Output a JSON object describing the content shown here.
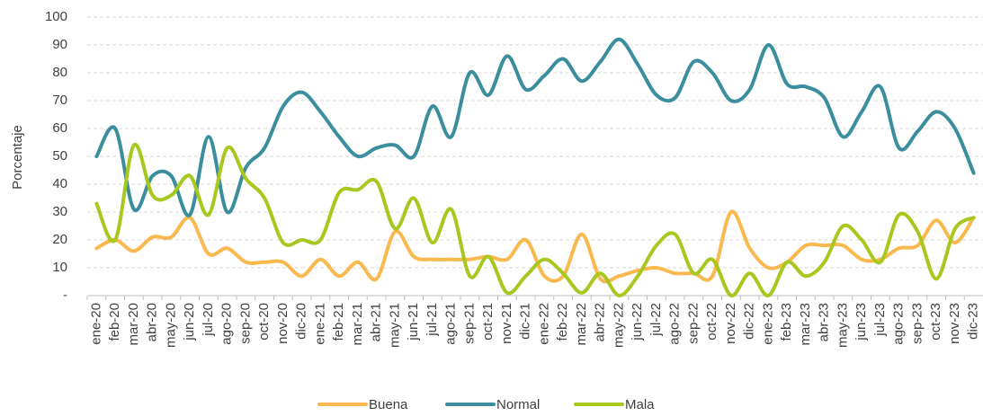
{
  "chart_data": {
    "type": "line",
    "y_label": "Porcentaje",
    "categories": [
      "ene-20",
      "feb-20",
      "mar-20",
      "abr-20",
      "may-20",
      "jun-20",
      "jul-20",
      "ago-20",
      "sep-20",
      "oct-20",
      "nov-20",
      "dic-20",
      "ene-21",
      "feb-21",
      "mar-21",
      "abr-21",
      "may-21",
      "jun-21",
      "jul-21",
      "ago-21",
      "sep-21",
      "oct-21",
      "nov-21",
      "dic-21",
      "ene-22",
      "feb-22",
      "mar-22",
      "abr-22",
      "may-22",
      "jun-22",
      "jul-22",
      "ago-22",
      "sep-22",
      "oct-22",
      "nov-22",
      "dic-22",
      "ene-23",
      "feb-23",
      "mar-23",
      "abr-23",
      "may-23",
      "jun-23",
      "jul-23",
      "ago-23",
      "sep-23",
      "oct-23",
      "nov-23",
      "dic-23"
    ],
    "series": [
      {
        "name": "Buena",
        "color": "#f9b94e",
        "values": [
          17,
          20,
          16,
          21,
          21,
          28,
          15,
          17,
          12,
          12,
          12,
          7,
          13,
          7,
          12,
          6,
          23,
          14,
          13,
          13,
          13,
          14,
          13,
          20,
          7,
          7,
          22,
          6,
          7,
          9,
          10,
          8,
          8,
          7,
          30,
          17,
          10,
          12,
          18,
          18,
          18,
          13,
          13,
          17,
          18,
          27,
          19,
          28
        ]
      },
      {
        "name": "Normal",
        "color": "#3a8e9e",
        "values": [
          50,
          60,
          31,
          43,
          43,
          29,
          57,
          30,
          46,
          53,
          68,
          73,
          66,
          57,
          50,
          53,
          54,
          50,
          68,
          57,
          80,
          72,
          86,
          74,
          79,
          85,
          77,
          84,
          92,
          83,
          72,
          71,
          84,
          80,
          70,
          74,
          90,
          76,
          75,
          71,
          57,
          66,
          75,
          53,
          59,
          66,
          60,
          44
        ]
      },
      {
        "name": "Mala",
        "color": "#a8c820",
        "values": [
          33,
          20,
          54,
          36,
          36,
          43,
          29,
          53,
          42,
          35,
          19,
          20,
          20,
          37,
          38,
          41,
          24,
          35,
          19,
          31,
          7,
          14,
          1,
          7,
          13,
          8,
          1,
          8,
          0,
          7,
          18,
          22,
          8,
          13,
          0,
          8,
          0,
          12,
          7,
          12,
          25,
          20,
          12,
          29,
          23,
          6,
          24,
          28
        ]
      }
    ],
    "ylim": [
      0,
      100
    ],
    "yticks": [
      {
        "value": 0,
        "label": "-"
      },
      10,
      20,
      30,
      40,
      50,
      60,
      70,
      80,
      90,
      100
    ],
    "grid": true,
    "legend": "bottom"
  }
}
